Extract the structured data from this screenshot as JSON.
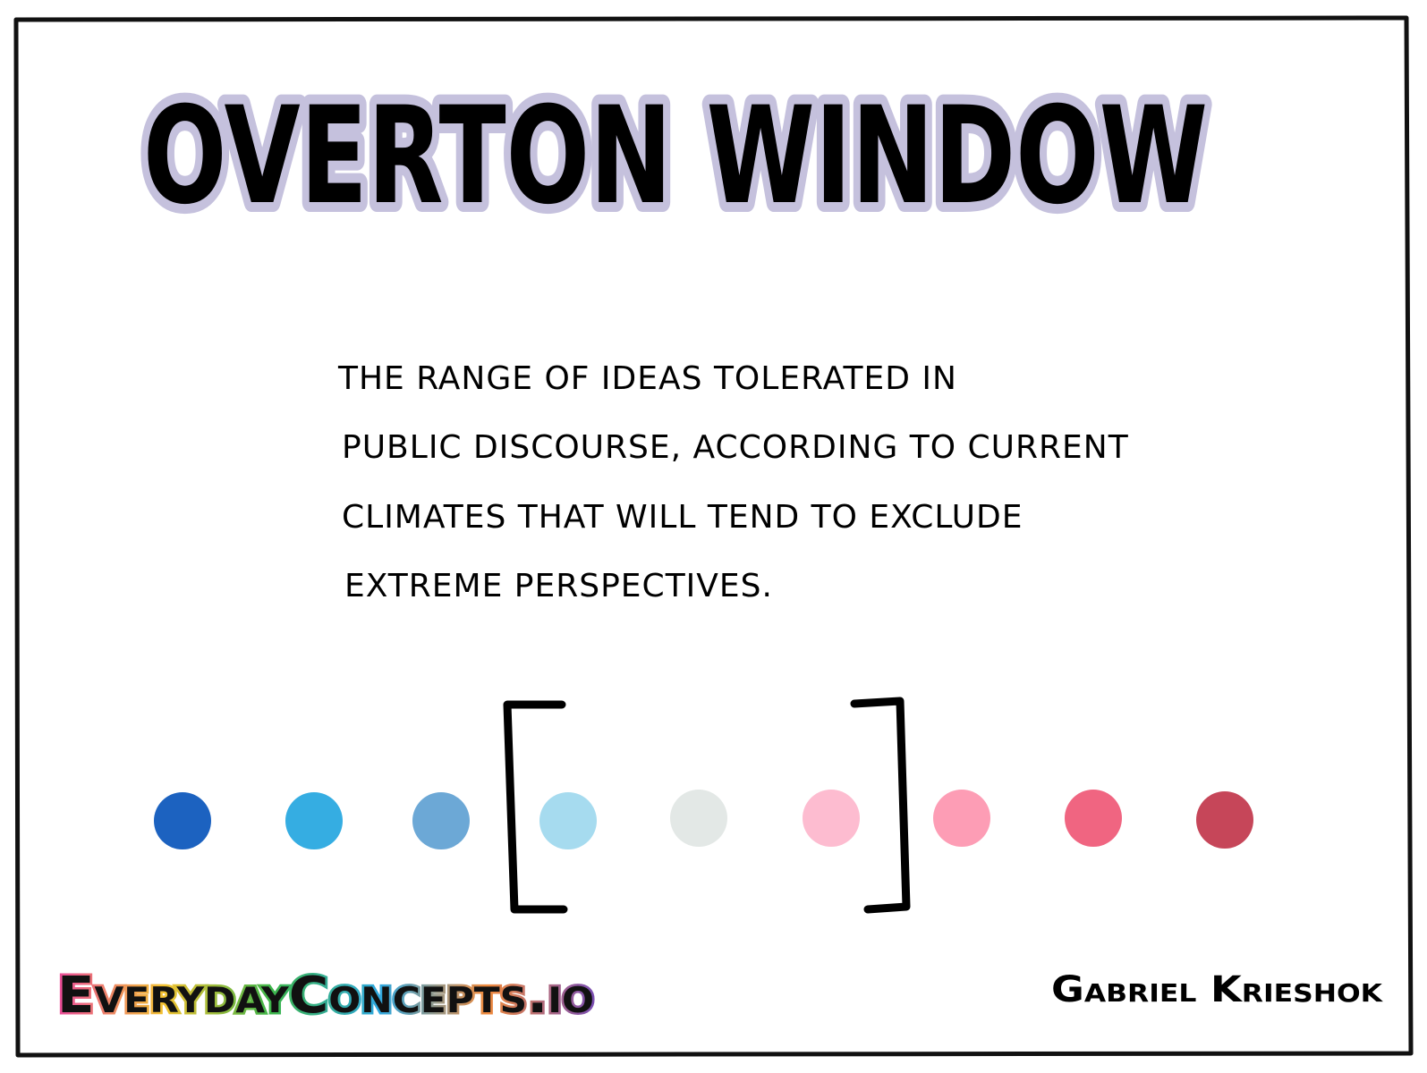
{
  "title": "OVERTON WINDOW",
  "description": [
    "THE RANGE OF IDEAS TOLERATED IN",
    "PUBLIC DISCOURSE, ACCORDING TO CURRENT",
    "CLIMATES THAT WILL TEND TO EXCLUDE",
    "EXTREME PERSPECTIVES."
  ],
  "footer": {
    "site": "EverydayConcepts.io",
    "author": "Gabriel Krieshok"
  }
}
